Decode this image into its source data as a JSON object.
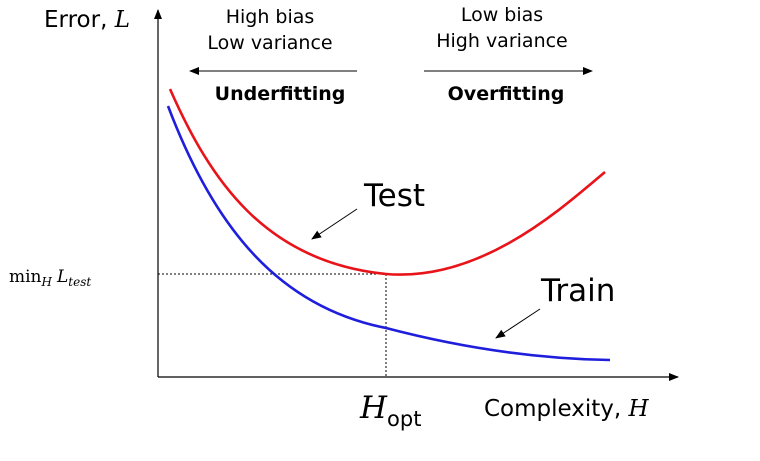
{
  "y_axis": {
    "label": "Error, ",
    "label_symbol": "L"
  },
  "x_axis": {
    "label": "Complexity, ",
    "label_symbol": "H"
  },
  "left_region": {
    "line1": "High bias",
    "line2": "Low variance",
    "title": "Underfitting"
  },
  "right_region": {
    "line1": "Low bias",
    "line2": "High variance",
    "title": "Overfitting"
  },
  "test_label": "Test",
  "train_label": "Train",
  "min_label": {
    "prefix": "min",
    "sub": "H",
    "symbol": "L",
    "sub2": "test"
  },
  "hopt_label": {
    "symbol": "H",
    "sub": "opt"
  },
  "colors": {
    "test": "#e8141a",
    "train": "#1e1edc",
    "axis": "#000000"
  }
}
